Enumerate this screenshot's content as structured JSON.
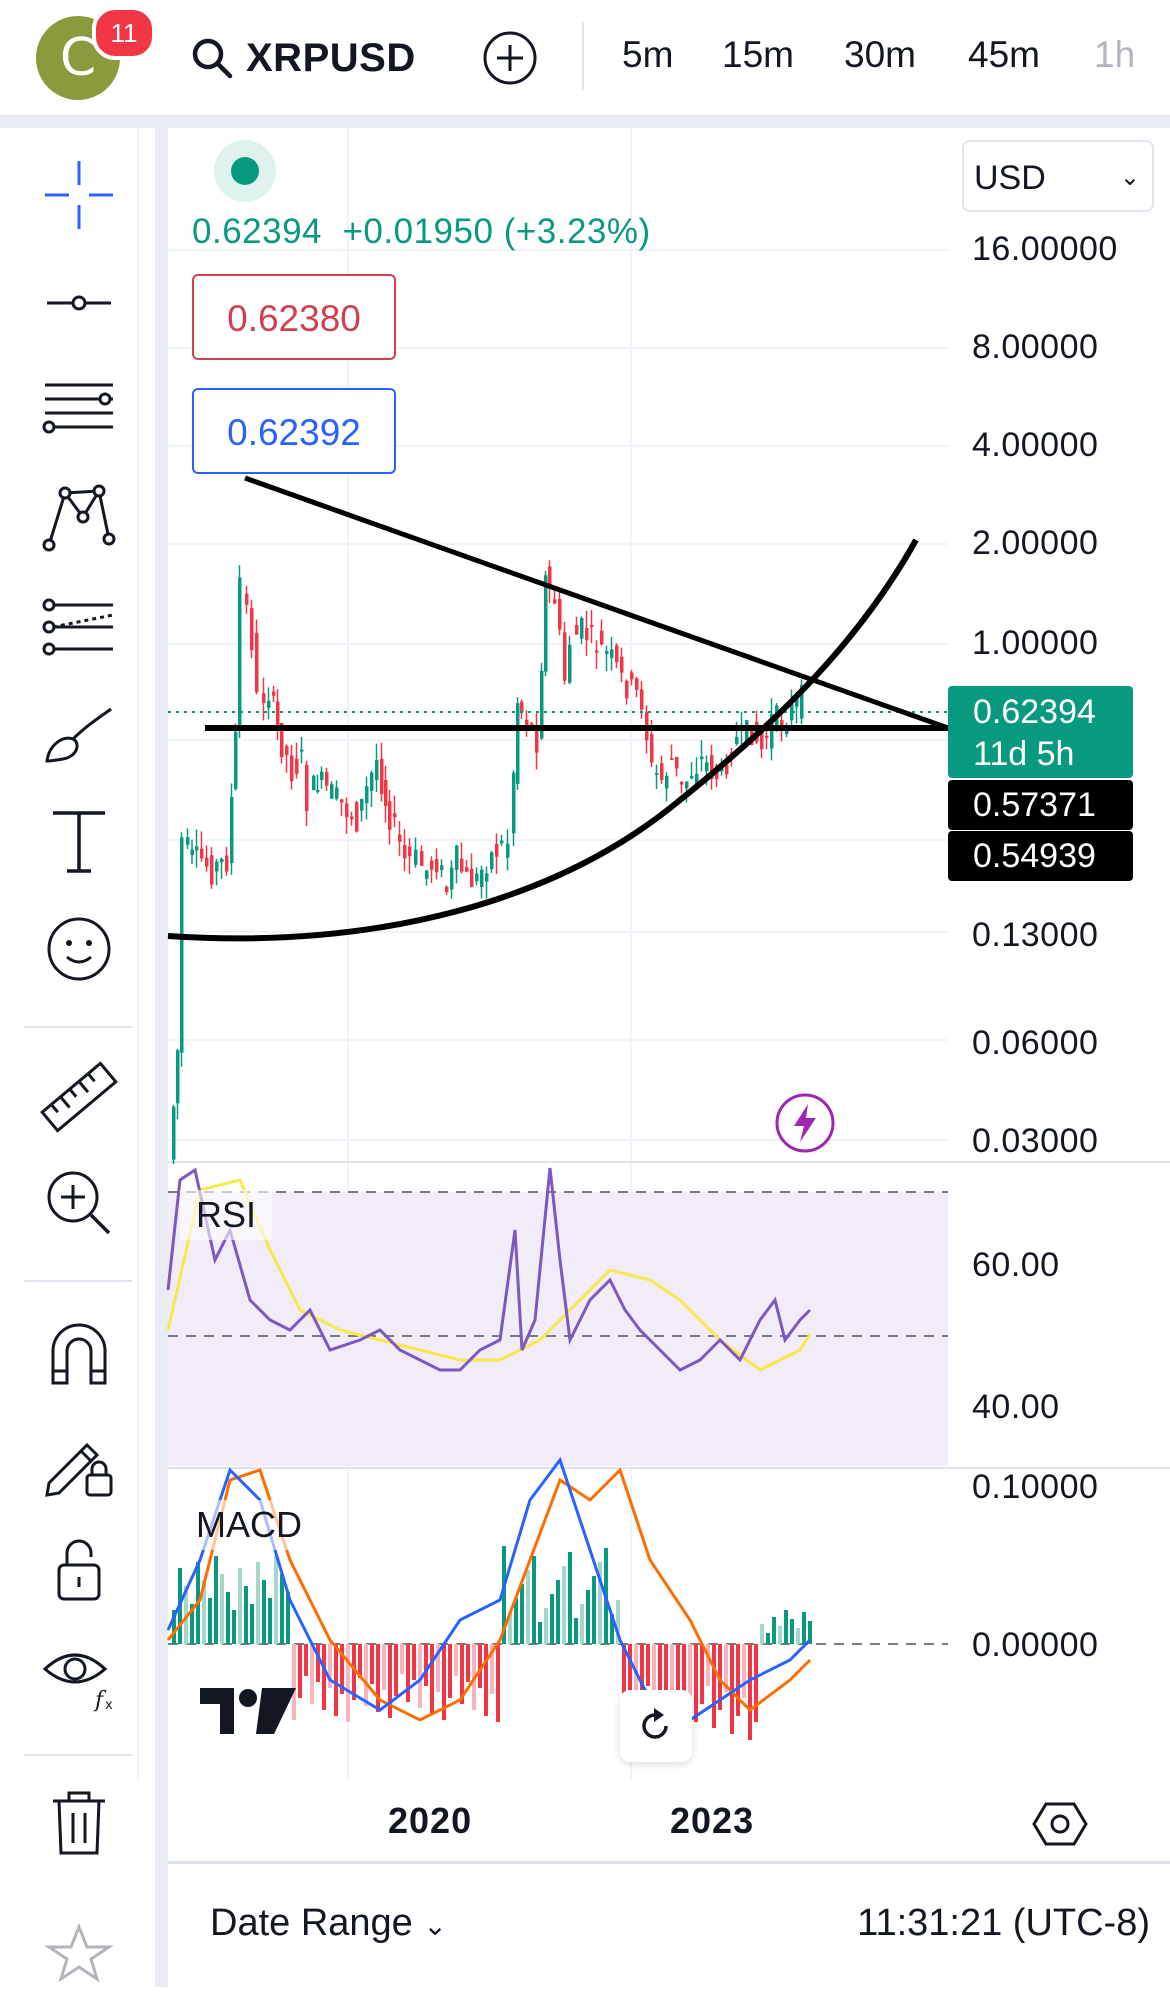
{
  "header": {
    "avatar_letter": "C",
    "notification_count": "11",
    "symbol": "XRPUSD",
    "intervals": [
      "5m",
      "15m",
      "30m",
      "45m",
      "1h"
    ],
    "icons": [
      "search-icon",
      "add-symbol-icon"
    ]
  },
  "toolbar": {
    "tools": [
      "crosshair-icon",
      "horizontal-ray-icon",
      "fib-retracement-icon",
      "xabcd-pattern-icon",
      "fib-channel-icon",
      "brush-icon",
      "text-icon",
      "emoji-icon",
      "ruler-icon",
      "zoom-in-icon",
      "magnet-icon",
      "lock-drawing-icon",
      "unlock-icon",
      "eye-icon",
      "trash-icon",
      "star-icon"
    ]
  },
  "chart": {
    "currency": "USD",
    "last_price": "0.62394",
    "change": "+0.01950",
    "change_pct": "(+3.23%)",
    "sell_price": "0.62380",
    "buy_price": "0.62392",
    "countdown": "11d 5h",
    "level_1": "0.57371",
    "level_2": "0.54939",
    "price_axis": [
      "16.00000",
      "8.00000",
      "4.00000",
      "2.00000",
      "1.00000",
      "0.13000",
      "0.06000",
      "0.03000"
    ],
    "rsi_label": "RSI",
    "rsi_axis": [
      "60.00",
      "40.00"
    ],
    "macd_label": "MACD",
    "macd_axis": [
      "0.10000",
      "0.00000"
    ],
    "time_axis": [
      "2020",
      "2023"
    ],
    "colors": {
      "up": "#089981",
      "down": "#f23645",
      "rsi": "#7e57c2",
      "rsi_ma": "#f7e94a",
      "macd": "#2962ff",
      "signal": "#ff6d00"
    }
  },
  "footer": {
    "date_range": "Date Range",
    "clock": "11:31:21 (UTC-8)"
  }
}
